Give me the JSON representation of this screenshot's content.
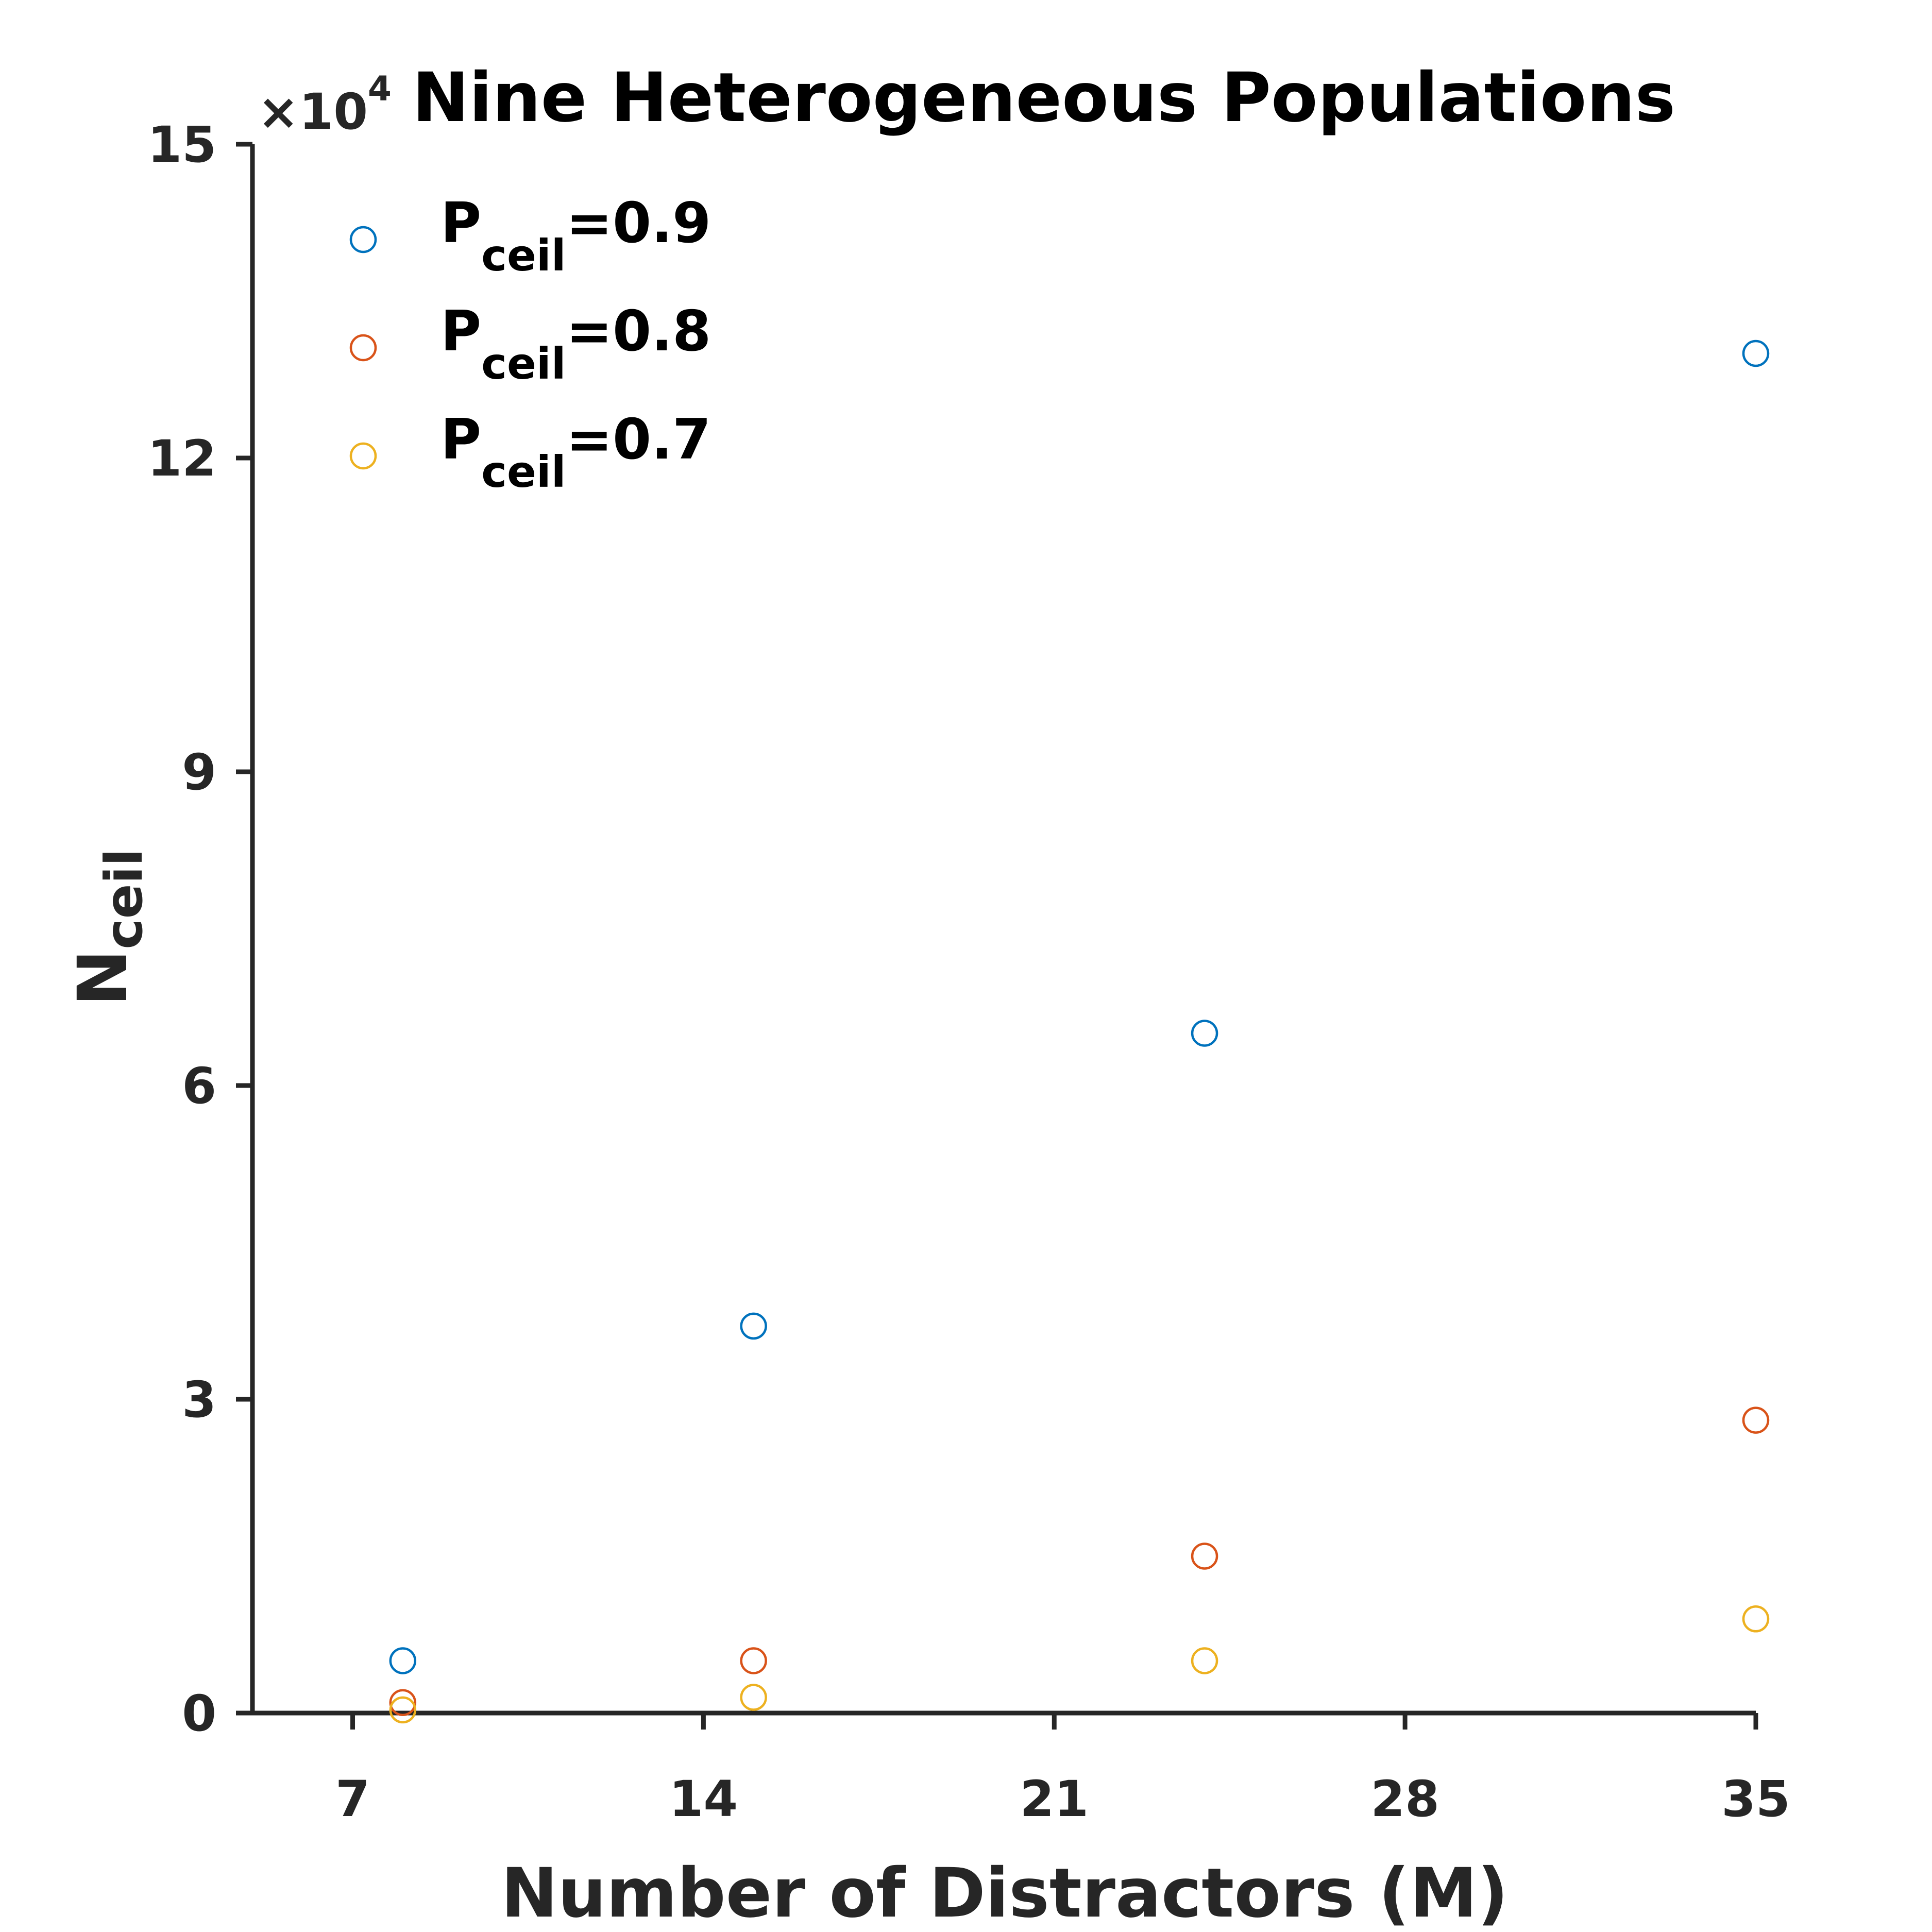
{
  "chart_data": {
    "type": "scatter",
    "title": "Nine Heterogeneous Populations",
    "xlabel": "Number of Distractors (M)",
    "ylabel": {
      "main": "N",
      "sub": "ceil"
    },
    "y_multiplier": {
      "prefix": "×10",
      "exponent": "4"
    },
    "xlim": [
      5,
      35
    ],
    "ylim": [
      0,
      15
    ],
    "x_ticks": [
      7,
      14,
      21,
      28,
      35
    ],
    "y_ticks": [
      0,
      3,
      6,
      9,
      12,
      15
    ],
    "grid": false,
    "legend_position": "top-left",
    "marker": "open-circle",
    "series": [
      {
        "name": "P_ceil=0.9",
        "label_main": "P",
        "label_sub": "ceil",
        "label_value": "=0.9",
        "color": "#0072BD",
        "x": [
          8,
          15,
          24,
          35
        ],
        "y": [
          0.5,
          3.7,
          6.5,
          13.0
        ]
      },
      {
        "name": "P_ceil=0.8",
        "label_main": "P",
        "label_sub": "ceil",
        "label_value": "=0.8",
        "color": "#D95319",
        "x": [
          8,
          15,
          24,
          35
        ],
        "y": [
          0.1,
          0.5,
          1.5,
          2.8
        ]
      },
      {
        "name": "P_ceil=0.7",
        "label_main": "P",
        "label_sub": "ceil",
        "label_value": "=0.7",
        "color": "#EDB120",
        "x": [
          8,
          15,
          24,
          35
        ],
        "y": [
          0.03,
          0.15,
          0.5,
          0.9
        ]
      }
    ]
  }
}
